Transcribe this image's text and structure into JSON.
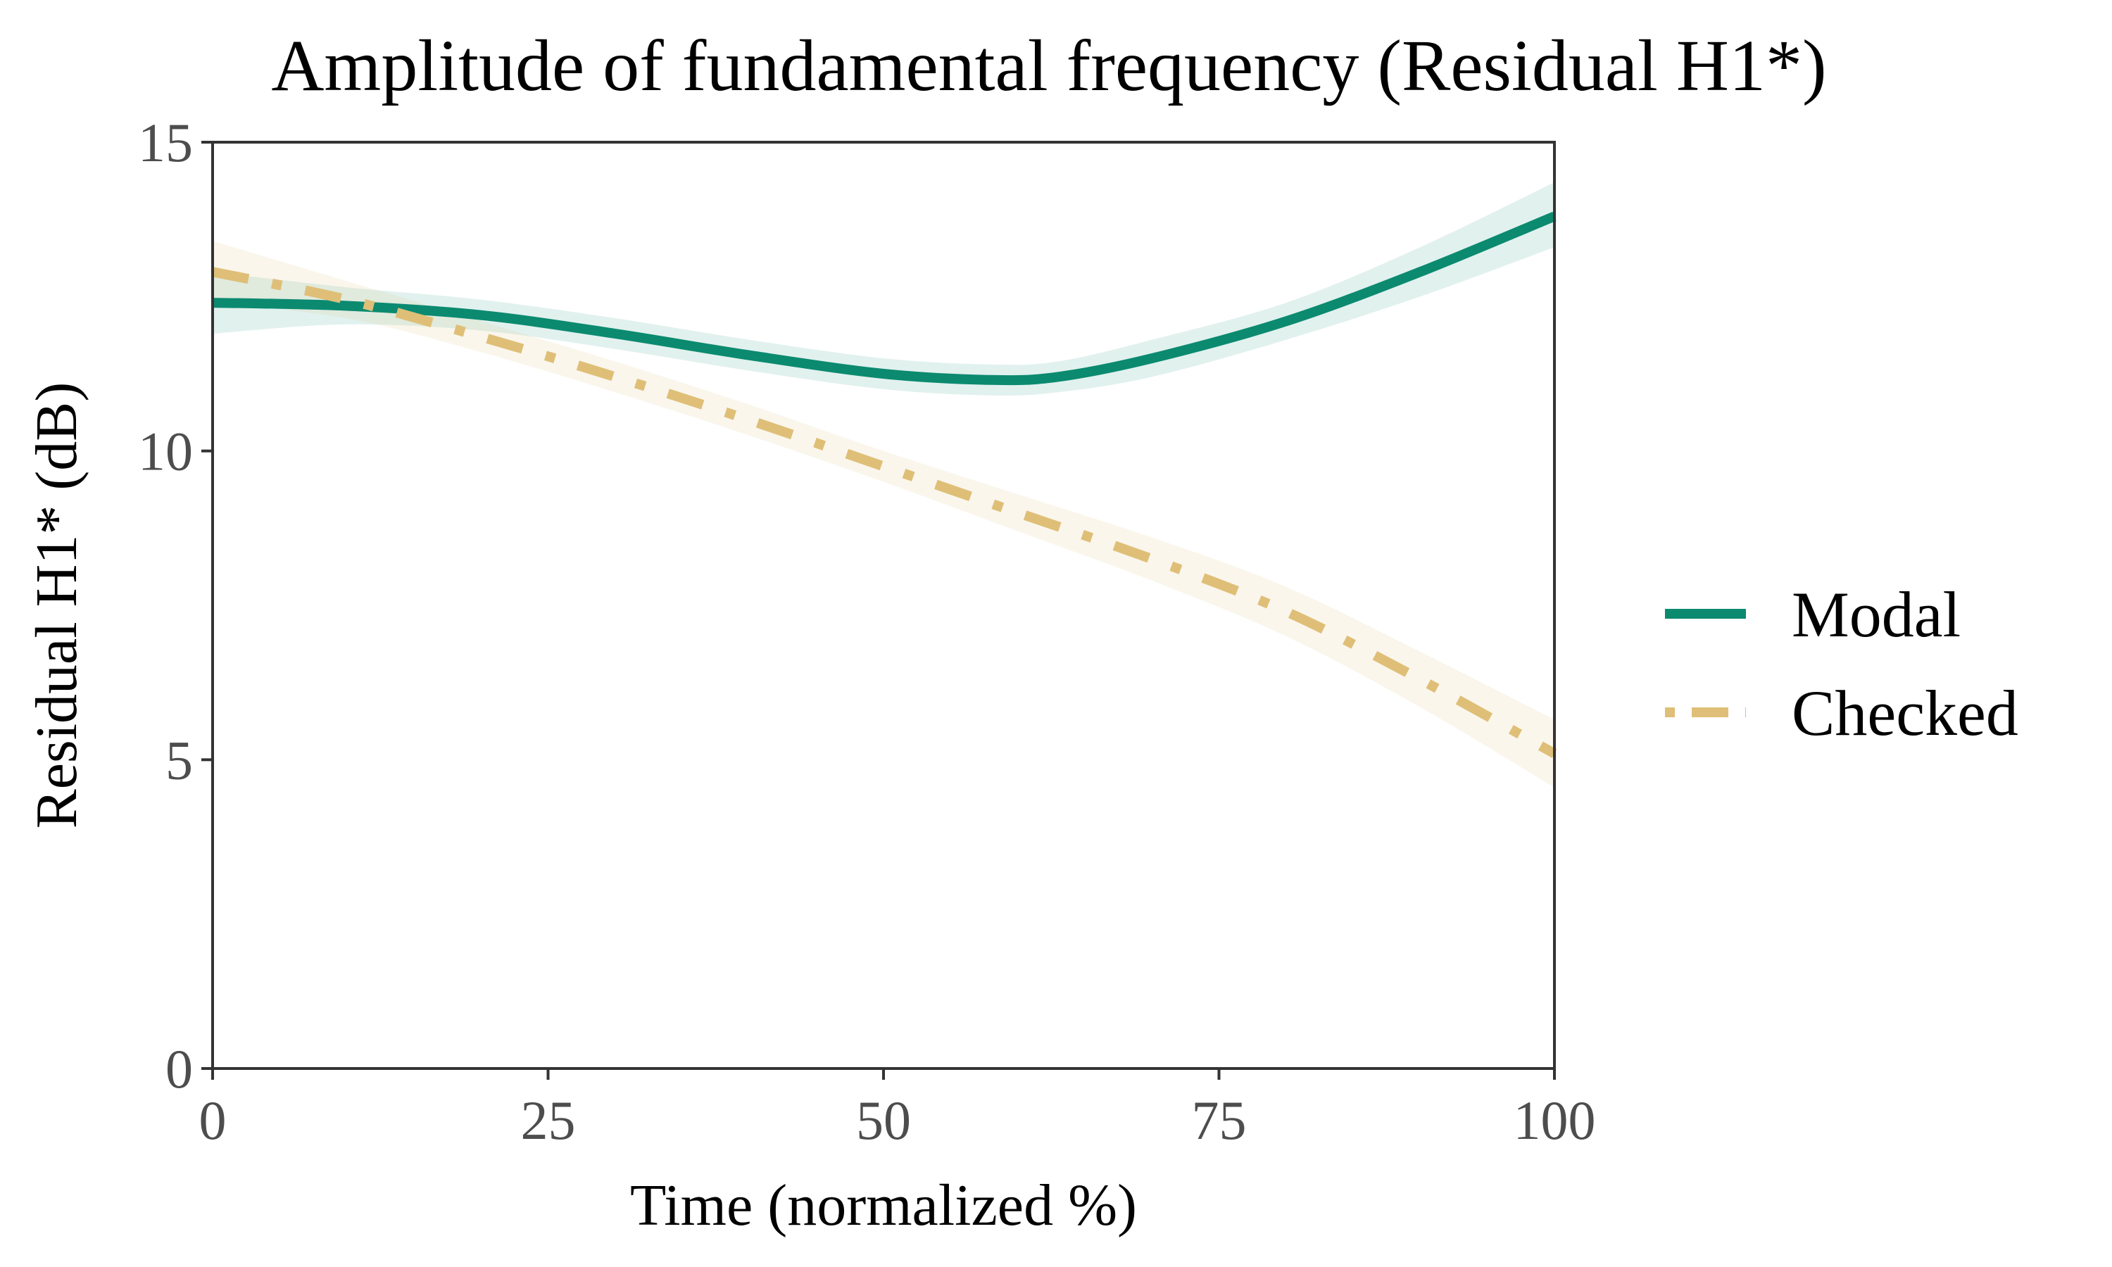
{
  "chart_data": {
    "type": "line",
    "title": "Amplitude of fundamental frequency (Residual H1*)",
    "xlabel": "Time (normalized %)",
    "ylabel": "Residual H1* (dB)",
    "xlim": [
      0,
      100
    ],
    "ylim": [
      0,
      15
    ],
    "x_ticks": [
      0,
      25,
      50,
      75,
      100
    ],
    "y_ticks": [
      0,
      5,
      10,
      15
    ],
    "grid": false,
    "legend_position": "right",
    "series": [
      {
        "name": "Modal",
        "color": "#0b8a70",
        "line_style": "solid",
        "x": [
          0,
          10,
          20,
          30,
          40,
          50,
          58,
          63,
          70,
          80,
          90,
          100
        ],
        "y": [
          12.4,
          12.35,
          12.2,
          11.9,
          11.55,
          11.25,
          11.15,
          11.2,
          11.5,
          12.1,
          12.9,
          13.8
        ],
        "ci_lower": [
          11.9,
          12.05,
          11.95,
          11.65,
          11.3,
          11.0,
          10.9,
          10.95,
          11.2,
          11.8,
          12.5,
          13.3
        ],
        "ci_upper": [
          12.9,
          12.65,
          12.45,
          12.15,
          11.8,
          11.5,
          11.4,
          11.45,
          11.8,
          12.4,
          13.3,
          14.35
        ]
      },
      {
        "name": "Checked",
        "color": "#dfbf77",
        "line_style": "dashdot",
        "x": [
          0,
          10,
          20,
          30,
          40,
          50,
          60,
          70,
          80,
          90,
          100
        ],
        "y": [
          12.9,
          12.45,
          11.85,
          11.2,
          10.5,
          9.75,
          9.0,
          8.25,
          7.4,
          6.3,
          5.1
        ],
        "ci_lower": [
          12.4,
          12.15,
          11.6,
          10.95,
          10.25,
          9.5,
          8.7,
          7.9,
          7.0,
          5.85,
          4.55
        ],
        "ci_upper": [
          13.4,
          12.75,
          12.1,
          11.45,
          10.75,
          10.0,
          9.3,
          8.6,
          7.8,
          6.75,
          5.65
        ]
      }
    ]
  }
}
